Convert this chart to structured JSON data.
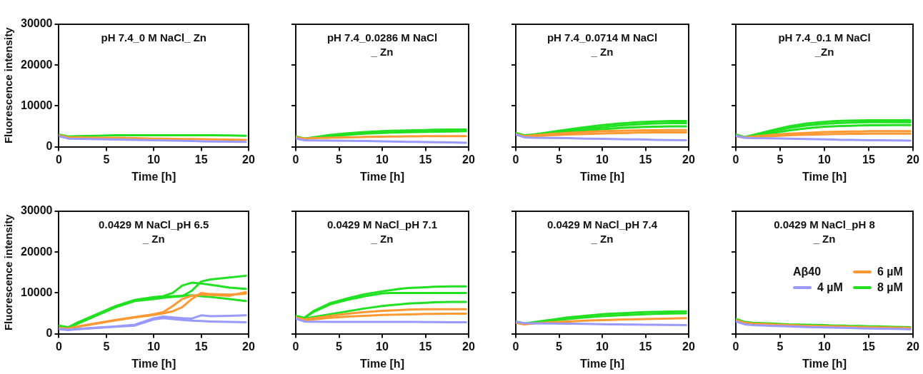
{
  "chart_data": [
    {
      "type": "line",
      "title": "pH 7.4_0 M NaCl_ Zn",
      "xlabel": "Time [h]",
      "ylabel": "Fluorescence intensity",
      "xlim": [
        0,
        20
      ],
      "xticks": [
        0,
        5,
        10,
        15,
        20
      ],
      "ylim": [
        0,
        30000
      ],
      "yticks": [
        0,
        10000,
        20000,
        30000
      ],
      "grid": false,
      "legend": false,
      "marker": "none",
      "line_style": "solid",
      "x": [
        0,
        1,
        2,
        4,
        6,
        8,
        10,
        11,
        12,
        13,
        14,
        15,
        16,
        18,
        19.7
      ],
      "series": [
        {
          "color": "#9999ff",
          "values": [
            2600,
            2000,
            1950,
            1850,
            1750,
            1700,
            1600,
            1550,
            1500,
            1450,
            1400,
            1350,
            1300,
            1250,
            1200
          ]
        },
        {
          "color": "#ff9933",
          "values": [
            2800,
            2300,
            2300,
            2200,
            2200,
            2100,
            2000,
            2000,
            1950,
            1900,
            1900,
            1850,
            1800,
            1750,
            1700
          ]
        },
        {
          "color": "#22e022",
          "values": [
            3000,
            2500,
            2600,
            2700,
            2800,
            2800,
            2800,
            2800,
            2800,
            2800,
            2800,
            2800,
            2800,
            2750,
            2700
          ]
        }
      ]
    },
    {
      "type": "line",
      "title": "pH 7.4_0.0286 M NaCl\n_ Zn",
      "xlabel": "Time [h]",
      "xlim": [
        0,
        20
      ],
      "xticks": [
        0,
        5,
        10,
        15,
        20
      ],
      "ylim": [
        0,
        30000
      ],
      "yticks": [
        0,
        10000,
        20000,
        30000
      ],
      "tick_labels": "x",
      "grid": false,
      "legend": false,
      "marker": "none",
      "line_style": "solid",
      "x": [
        0,
        1,
        2,
        4,
        6,
        8,
        10,
        11,
        12,
        13,
        14,
        15,
        16,
        18,
        19.7
      ],
      "series": [
        {
          "color": "#9999ff",
          "values": [
            2000,
            1600,
            1550,
            1500,
            1450,
            1400,
            1350,
            1300,
            1250,
            1200,
            1200,
            1150,
            1100,
            1050,
            1000
          ]
        },
        {
          "color": "#ff9933",
          "values": [
            2300,
            2000,
            2100,
            2200,
            2300,
            2400,
            2450,
            2500,
            2500,
            2550,
            2550,
            2600,
            2600,
            2600,
            2600
          ]
        },
        {
          "color": "#22e022",
          "values": [
            2500,
            2000,
            2300,
            2900,
            3300,
            3600,
            3800,
            3900,
            3950,
            4000,
            4050,
            4100,
            4150,
            4200,
            4200
          ]
        },
        {
          "color": "#22e022",
          "values": [
            2400,
            2000,
            2200,
            2600,
            2900,
            3200,
            3400,
            3450,
            3500,
            3550,
            3600,
            3650,
            3700,
            3750,
            3800
          ]
        }
      ]
    },
    {
      "type": "line",
      "title": "pH 7.4_0.0714 M NaCl\n_ Zn",
      "xlabel": "Time [h]",
      "xlim": [
        0,
        20
      ],
      "xticks": [
        0,
        5,
        10,
        15,
        20
      ],
      "ylim": [
        0,
        30000
      ],
      "yticks": [
        0,
        10000,
        20000,
        30000
      ],
      "tick_labels": "x",
      "grid": false,
      "legend": false,
      "marker": "none",
      "line_style": "solid",
      "x": [
        0,
        1,
        2,
        4,
        6,
        8,
        10,
        11,
        12,
        13,
        14,
        15,
        16,
        18,
        19.7
      ],
      "series": [
        {
          "color": "#9999ff",
          "values": [
            3000,
            2300,
            2200,
            2150,
            2100,
            2000,
            1950,
            1900,
            1850,
            1800,
            1800,
            1750,
            1700,
            1650,
            1600
          ]
        },
        {
          "color": "#ff9933",
          "values": [
            3100,
            2600,
            2800,
            3100,
            3400,
            3600,
            3800,
            3850,
            3900,
            3950,
            4000,
            4050,
            4050,
            4100,
            4100
          ]
        },
        {
          "color": "#ff9933",
          "values": [
            3000,
            2500,
            2600,
            2800,
            3000,
            3100,
            3250,
            3300,
            3350,
            3400,
            3450,
            3450,
            3500,
            3500,
            3500
          ]
        },
        {
          "color": "#22e022",
          "values": [
            3400,
            2800,
            3000,
            3600,
            4200,
            4800,
            5300,
            5500,
            5700,
            5850,
            6000,
            6100,
            6200,
            6300,
            6300
          ]
        },
        {
          "color": "#22e022",
          "values": [
            3300,
            2700,
            2900,
            3400,
            3900,
            4400,
            4800,
            5000,
            5200,
            5350,
            5500,
            5600,
            5700,
            5800,
            5800
          ]
        },
        {
          "color": "#22e022",
          "values": [
            3200,
            2700,
            2900,
            3300,
            3700,
            4000,
            4300,
            4450,
            4600,
            4700,
            4800,
            4850,
            4900,
            5000,
            5000
          ]
        }
      ]
    },
    {
      "type": "line",
      "title": "pH 7.4_0.1 M NaCl\n_Zn",
      "xlabel": "Time [h]",
      "xlim": [
        0,
        20
      ],
      "xticks": [
        0,
        5,
        10,
        15,
        20
      ],
      "ylim": [
        0,
        30000
      ],
      "yticks": [
        0,
        10000,
        20000,
        30000
      ],
      "tick_labels": "x",
      "grid": false,
      "legend": false,
      "marker": "none",
      "line_style": "solid",
      "x": [
        0,
        1,
        2,
        4,
        6,
        8,
        10,
        11,
        12,
        13,
        14,
        15,
        16,
        18,
        19.7
      ],
      "series": [
        {
          "color": "#9999ff",
          "values": [
            2700,
            2200,
            2100,
            2050,
            2000,
            1900,
            1800,
            1750,
            1700,
            1700,
            1650,
            1600,
            1600,
            1550,
            1500
          ]
        },
        {
          "color": "#ff9933",
          "values": [
            2700,
            2300,
            2500,
            2900,
            3200,
            3400,
            3600,
            3650,
            3700,
            3750,
            3750,
            3800,
            3800,
            3800,
            3800
          ]
        },
        {
          "color": "#ff9933",
          "values": [
            2600,
            2200,
            2300,
            2600,
            2800,
            2950,
            3050,
            3100,
            3100,
            3150,
            3150,
            3200,
            3200,
            3200,
            3200
          ]
        },
        {
          "color": "#22e022",
          "values": [
            3000,
            2400,
            2900,
            4000,
            5000,
            5700,
            6100,
            6250,
            6350,
            6400,
            6450,
            6500,
            6500,
            6500,
            6500
          ]
        },
        {
          "color": "#22e022",
          "values": [
            2900,
            2300,
            2700,
            3700,
            4600,
            5200,
            5600,
            5750,
            5850,
            5900,
            5950,
            6000,
            6000,
            6000,
            6000
          ]
        },
        {
          "color": "#22e022",
          "values": [
            2800,
            2300,
            2600,
            3300,
            4000,
            4500,
            4900,
            5000,
            5100,
            5150,
            5200,
            5250,
            5250,
            5300,
            5300
          ]
        }
      ]
    },
    {
      "type": "line",
      "title": "0.0429 M NaCl_pH 6.5\n_ Zn",
      "xlabel": "Time [h]",
      "ylabel": "Fluorescence intensity",
      "xlim": [
        0,
        20
      ],
      "xticks": [
        0,
        5,
        10,
        15,
        20
      ],
      "ylim": [
        0,
        30000
      ],
      "yticks": [
        0,
        10000,
        20000,
        30000
      ],
      "grid": false,
      "legend": false,
      "marker": "none",
      "line_style": "solid",
      "x": [
        0,
        1,
        2,
        4,
        6,
        8,
        10,
        11,
        12,
        13,
        14,
        15,
        16,
        18,
        19.7
      ],
      "series": [
        {
          "color": "#9999ff",
          "values": [
            1200,
            1000,
            1200,
            1500,
            1800,
            2200,
            3800,
            4200,
            4000,
            3800,
            3700,
            4500,
            4300,
            4400,
            4500
          ]
        },
        {
          "color": "#9999ff",
          "values": [
            1100,
            900,
            1100,
            1400,
            1700,
            2000,
            3500,
            3800,
            3600,
            3400,
            3200,
            3100,
            3000,
            2900,
            2800
          ]
        },
        {
          "color": "#ff9933",
          "values": [
            1400,
            1300,
            1800,
            2600,
            3400,
            4100,
            4800,
            5300,
            6800,
            8500,
            9300,
            9600,
            9500,
            9300,
            10200
          ]
        },
        {
          "color": "#ff9933",
          "values": [
            1300,
            1200,
            1700,
            2500,
            3300,
            4000,
            4600,
            5000,
            5500,
            6500,
            8500,
            10000,
            9700,
            9600,
            9800
          ]
        },
        {
          "color": "#22e022",
          "values": [
            2000,
            1600,
            2800,
            4800,
            6800,
            8300,
            9000,
            9200,
            10000,
            11800,
            12500,
            12300,
            12000,
            11300,
            11000
          ]
        },
        {
          "color": "#22e022",
          "values": [
            1800,
            1500,
            2500,
            4500,
            6500,
            8000,
            8500,
            8800,
            9000,
            9200,
            10500,
            12800,
            13300,
            13800,
            14200
          ]
        },
        {
          "color": "#22e022",
          "values": [
            1900,
            1500,
            2600,
            4600,
            6600,
            8100,
            8700,
            9000,
            9200,
            9300,
            9400,
            9200,
            9000,
            8500,
            8000
          ]
        }
      ]
    },
    {
      "type": "line",
      "title": "0.0429 M NaCl_pH 7.1\n_ Zn",
      "xlabel": "Time [h]",
      "xlim": [
        0,
        20
      ],
      "xticks": [
        0,
        5,
        10,
        15,
        20
      ],
      "ylim": [
        0,
        30000
      ],
      "yticks": [
        0,
        10000,
        20000,
        30000
      ],
      "tick_labels": "x",
      "grid": false,
      "legend": false,
      "marker": "none",
      "line_style": "solid",
      "x": [
        0,
        1,
        2,
        4,
        6,
        8,
        10,
        11,
        12,
        13,
        14,
        15,
        16,
        18,
        19.7
      ],
      "series": [
        {
          "color": "#9999ff",
          "values": [
            3700,
            3000,
            2950,
            2900,
            2900,
            2900,
            2900,
            2900,
            2900,
            2900,
            2900,
            2850,
            2850,
            2800,
            2800
          ]
        },
        {
          "color": "#ff9933",
          "values": [
            4000,
            3500,
            3800,
            4400,
            4900,
            5300,
            5600,
            5700,
            5800,
            5900,
            5950,
            6000,
            6000,
            6000,
            6000
          ]
        },
        {
          "color": "#ff9933",
          "values": [
            3800,
            3300,
            3500,
            3900,
            4200,
            4400,
            4600,
            4650,
            4700,
            4750,
            4800,
            4850,
            4850,
            4900,
            4900
          ]
        },
        {
          "color": "#22e022",
          "values": [
            4400,
            3900,
            5500,
            7500,
            8700,
            9700,
            10400,
            10700,
            11000,
            11200,
            11300,
            11400,
            11500,
            11600,
            11600
          ]
        },
        {
          "color": "#22e022",
          "values": [
            4300,
            3800,
            5300,
            7200,
            8300,
            9200,
            9900,
            10000,
            10000,
            10000,
            10000,
            10000,
            10000,
            10000,
            10000
          ]
        },
        {
          "color": "#22e022",
          "values": [
            4200,
            3700,
            4100,
            4800,
            5500,
            6200,
            6800,
            7000,
            7200,
            7400,
            7500,
            7600,
            7700,
            7800,
            7800
          ]
        }
      ]
    },
    {
      "type": "line",
      "title": "0.0429 M NaCl_pH 7.4\n_ Zn",
      "xlabel": "Time [h]",
      "xlim": [
        0,
        20
      ],
      "xticks": [
        0,
        5,
        10,
        15,
        20
      ],
      "ylim": [
        0,
        30000
      ],
      "yticks": [
        0,
        10000,
        20000,
        30000
      ],
      "tick_labels": "x",
      "grid": false,
      "legend": false,
      "marker": "none",
      "line_style": "solid",
      "x": [
        0,
        1,
        2,
        4,
        6,
        8,
        10,
        11,
        12,
        13,
        14,
        15,
        16,
        18,
        19.7
      ],
      "series": [
        {
          "color": "#9999ff",
          "values": [
            2900,
            2600,
            2550,
            2500,
            2450,
            2400,
            2350,
            2300,
            2300,
            2250,
            2250,
            2200,
            2200,
            2150,
            2100
          ]
        },
        {
          "color": "#ff9933",
          "values": [
            2700,
            2300,
            2500,
            2800,
            3000,
            3200,
            3350,
            3400,
            3450,
            3500,
            3550,
            3600,
            3650,
            3750,
            3800
          ]
        },
        {
          "color": "#22e022",
          "values": [
            3000,
            2500,
            2800,
            3400,
            4000,
            4400,
            4800,
            4900,
            5000,
            5100,
            5200,
            5300,
            5350,
            5450,
            5500
          ]
        },
        {
          "color": "#22e022",
          "values": [
            2900,
            2500,
            2700,
            3200,
            3600,
            4000,
            4300,
            4400,
            4500,
            4600,
            4700,
            4800,
            4850,
            4950,
            5000
          ]
        }
      ]
    },
    {
      "type": "line",
      "title": "0.0429 M NaCl_pH 8\n_ Zn",
      "xlabel": "Time [h]",
      "legend_title": "Aβ40",
      "xlim": [
        0,
        20
      ],
      "xticks": [
        0,
        5,
        10,
        15,
        20
      ],
      "ylim": [
        0,
        30000
      ],
      "yticks": [
        0,
        10000,
        20000,
        30000
      ],
      "tick_labels": "x",
      "grid": false,
      "legend": "right",
      "marker": "none",
      "line_style": "solid",
      "x": [
        0,
        1,
        2,
        4,
        6,
        8,
        10,
        11,
        12,
        13,
        14,
        15,
        16,
        18,
        19.7
      ],
      "series": [
        {
          "name": "4 µM",
          "color": "#9999ff",
          "values": [
            3000,
            2300,
            2100,
            1950,
            1800,
            1650,
            1550,
            1500,
            1450,
            1400,
            1350,
            1300,
            1250,
            1200,
            1100
          ]
        },
        {
          "name": "6 µM",
          "color": "#ff9933",
          "values": [
            3300,
            2700,
            2500,
            2300,
            2100,
            1950,
            1850,
            1800,
            1750,
            1700,
            1650,
            1600,
            1550,
            1500,
            1400
          ]
        },
        {
          "name": "8 µM",
          "color": "#22e022",
          "values": [
            3600,
            2900,
            2700,
            2500,
            2300,
            2200,
            2100,
            2000,
            2000,
            1900,
            1900,
            1800,
            1800,
            1700,
            1600
          ]
        }
      ]
    }
  ]
}
